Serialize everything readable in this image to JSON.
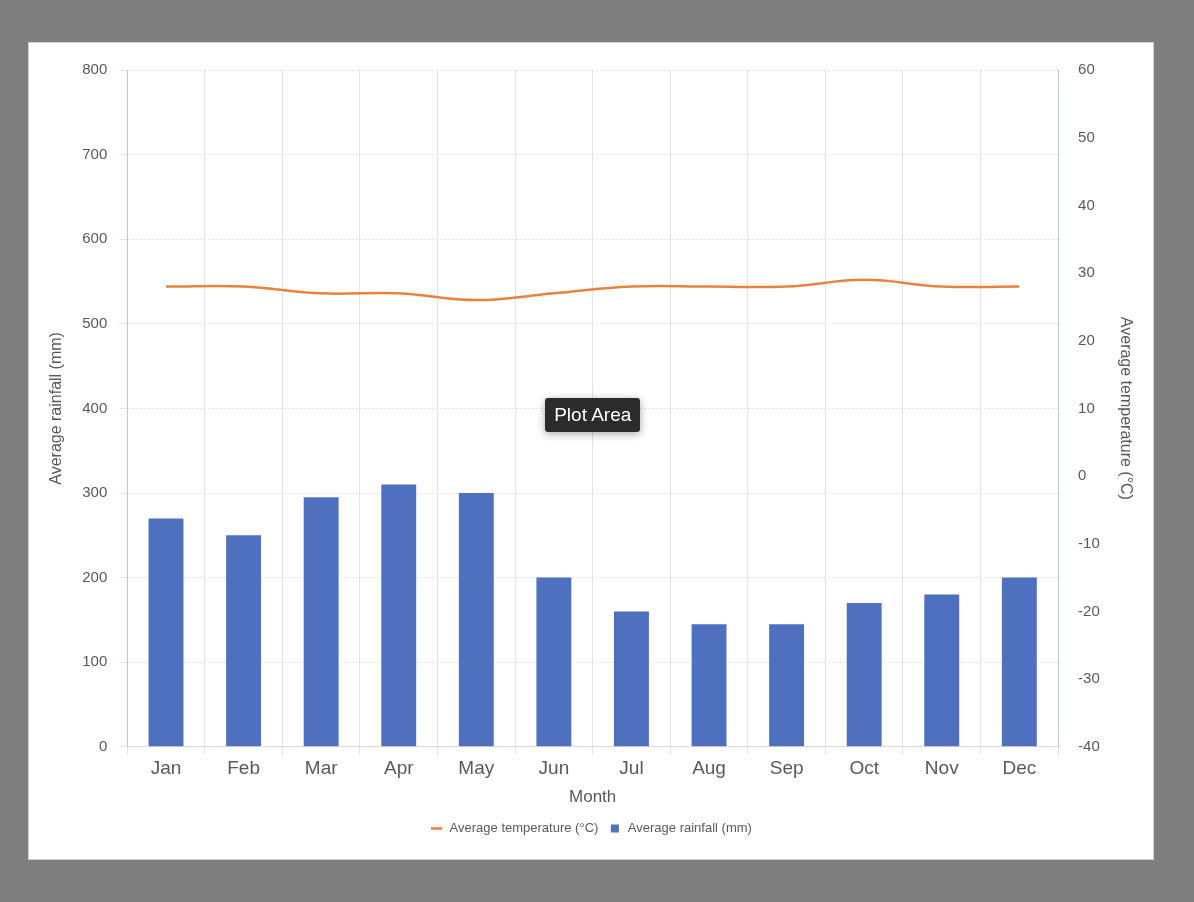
{
  "chart_data": {
    "type": "bar",
    "categories": [
      "Jan",
      "Feb",
      "Mar",
      "Apr",
      "May",
      "Jun",
      "Jul",
      "Aug",
      "Sep",
      "Oct",
      "Nov",
      "Dec"
    ],
    "x_label": "Month",
    "y_label": "Average rainfall (mm)",
    "y2_label": "Average temperature (°C)",
    "series": [
      {
        "name": "Average rainfall (mm)",
        "color": "#4f6fbf",
        "values": [
          270,
          250,
          295,
          310,
          300,
          200,
          160,
          145,
          145,
          170,
          180,
          200
        ]
      },
      {
        "name": "Average temperature (°C)",
        "type": "line",
        "axis": "y2",
        "color": "#e8823d",
        "values": [
          28,
          28,
          27,
          27,
          26,
          27,
          28,
          28,
          28,
          29,
          28,
          28
        ]
      }
    ],
    "ylim": [
      0,
      800
    ],
    "yticks": [
      0,
      100,
      200,
      300,
      400,
      500,
      600,
      700,
      800
    ],
    "y2lim": [
      -40,
      60
    ],
    "y2ticks": [
      -40,
      -30,
      -20,
      -10,
      0,
      10,
      20,
      30,
      40,
      50,
      60
    ],
    "grid": true,
    "legend": "bottom",
    "annotations": [
      "Plot Area"
    ]
  }
}
